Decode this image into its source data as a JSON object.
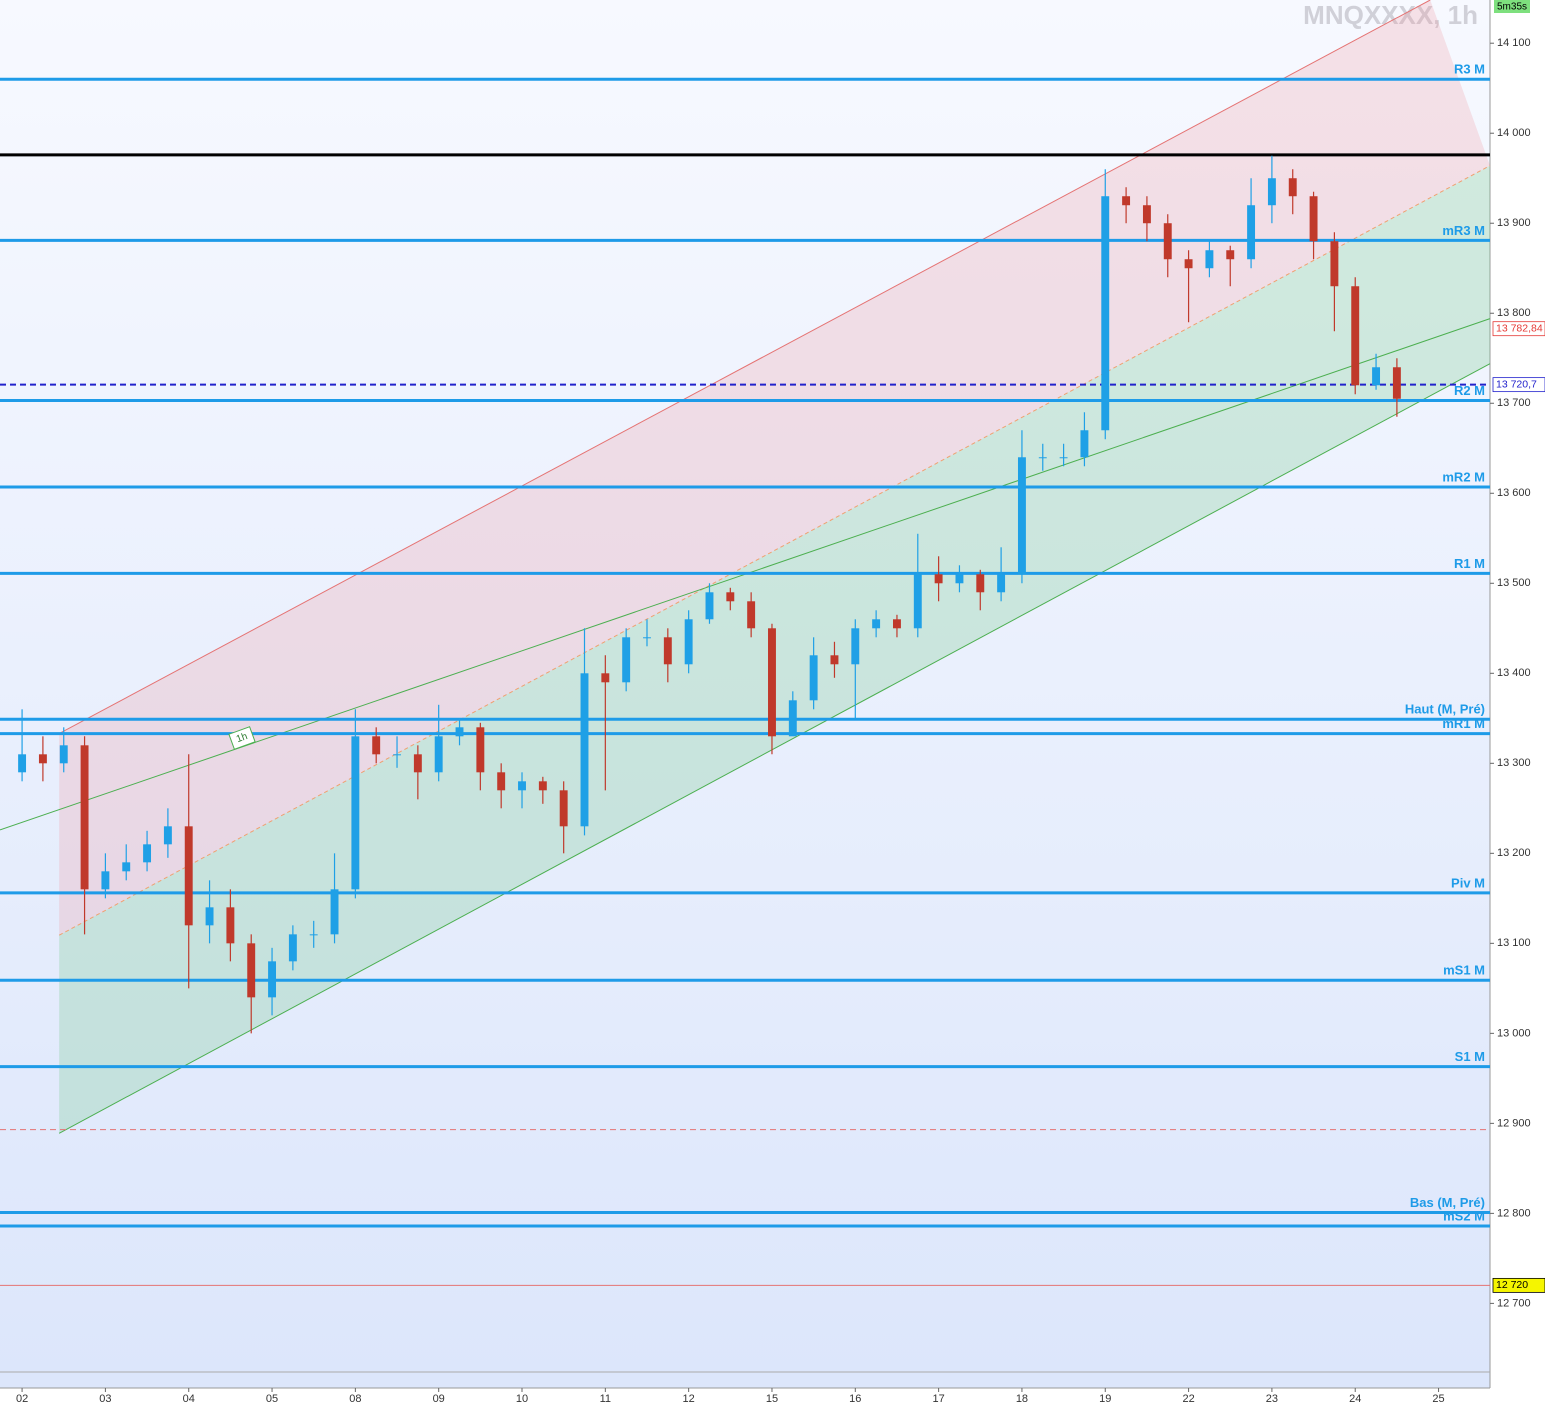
{
  "chart_data": {
    "type": "candlestick",
    "title": "MNQXXXX, 1h",
    "timer": "5m35s",
    "annotation": "1h",
    "xlim": [
      -1.06,
      70.47
    ],
    "ylim": [
      12606,
      14148
    ],
    "xticks": [
      {
        "value": 0,
        "label": "02"
      },
      {
        "value": 4,
        "label": "03"
      },
      {
        "value": 8,
        "label": "04"
      },
      {
        "value": 12,
        "label": "05"
      },
      {
        "value": 16,
        "label": "08"
      },
      {
        "value": 20,
        "label": "09"
      },
      {
        "value": 24,
        "label": "10"
      },
      {
        "value": 28,
        "label": "11"
      },
      {
        "value": 32,
        "label": "12"
      },
      {
        "value": 36,
        "label": "15"
      },
      {
        "value": 40,
        "label": "16"
      },
      {
        "value": 44,
        "label": "17"
      },
      {
        "value": 48,
        "label": "18"
      },
      {
        "value": 52,
        "label": "19"
      },
      {
        "value": 56,
        "label": "22"
      },
      {
        "value": 60,
        "label": "23"
      },
      {
        "value": 64,
        "label": "24"
      },
      {
        "value": 68,
        "label": "25"
      }
    ],
    "yticks": [
      {
        "value": 12700,
        "label": "12 700"
      },
      {
        "value": 12800,
        "label": "12 800"
      },
      {
        "value": 12900,
        "label": "12 900"
      },
      {
        "value": 13000,
        "label": "13 000"
      },
      {
        "value": 13100,
        "label": "13 100"
      },
      {
        "value": 13200,
        "label": "13 200"
      },
      {
        "value": 13300,
        "label": "13 300"
      },
      {
        "value": 13400,
        "label": "13 400"
      },
      {
        "value": 13500,
        "label": "13 500"
      },
      {
        "value": 13600,
        "label": "13 600"
      },
      {
        "value": 13700,
        "label": "13 700"
      },
      {
        "value": 13800,
        "label": "13 800"
      },
      {
        "value": 13900,
        "label": "13 900"
      },
      {
        "value": 14000,
        "label": "14 000"
      },
      {
        "value": 14100,
        "label": "14 100"
      }
    ],
    "up_color": "#1fa0e6",
    "down_color": "#c0392b",
    "open": [
      13290,
      13310,
      13300,
      13320,
      13160,
      13180,
      13190,
      13210,
      13230,
      13120,
      13140,
      13100,
      13040,
      13080,
      13110,
      13110,
      13160,
      13330,
      13310,
      13310,
      13290,
      13330,
      13340,
      13290,
      13270,
      13280,
      13270,
      13230,
      13400,
      13390,
      13440,
      13440,
      13410,
      13460,
      13490,
      13480,
      13450,
      13330,
      13370,
      13420,
      13410,
      13450,
      13460,
      13450,
      13510,
      13500,
      13510,
      13490,
      13510,
      13640,
      13640,
      13640,
      13670,
      13930,
      13920,
      13900,
      13860,
      13850,
      13870,
      13860,
      13920,
      13950,
      13930,
      13880,
      13830,
      13720,
      13740
    ],
    "high": [
      13360,
      13330,
      13340,
      13330,
      13200,
      13210,
      13225,
      13250,
      13310,
      13170,
      13160,
      13110,
      13095,
      13120,
      13125,
      13200,
      13360,
      13340,
      13330,
      13320,
      13365,
      13350,
      13345,
      13300,
      13290,
      13285,
      13280,
      13450,
      13420,
      13450,
      13460,
      13450,
      13470,
      13500,
      13495,
      13490,
      13455,
      13380,
      13440,
      13435,
      13460,
      13470,
      13465,
      13555,
      13530,
      13520,
      13515,
      13540,
      13670,
      13655,
      13655,
      13690,
      13960,
      13940,
      13930,
      13910,
      13870,
      13880,
      13875,
      13950,
      13975,
      13960,
      13935,
      13890,
      13840,
      13755,
      13750
    ],
    "low": [
      13280,
      13280,
      13290,
      13110,
      13150,
      13170,
      13180,
      13195,
      13050,
      13100,
      13080,
      13000,
      13020,
      13070,
      13095,
      13100,
      13150,
      13300,
      13295,
      13260,
      13280,
      13320,
      13270,
      13250,
      13250,
      13255,
      13200,
      13220,
      13270,
      13380,
      13430,
      13390,
      13400,
      13455,
      13470,
      13440,
      13310,
      13345,
      13360,
      13395,
      13350,
      13440,
      13440,
      13440,
      13480,
      13490,
      13470,
      13480,
      13500,
      13625,
      13630,
      13630,
      13660,
      13900,
      13880,
      13840,
      13790,
      13840,
      13830,
      13850,
      13900,
      13910,
      13860,
      13780,
      13710,
      13715,
      13685
    ],
    "close": [
      13310,
      13300,
      13320,
      13160,
      13180,
      13190,
      13210,
      13230,
      13120,
      13140,
      13100,
      13040,
      13080,
      13110,
      13110,
      13160,
      13330,
      13310,
      13310,
      13290,
      13330,
      13340,
      13290,
      13270,
      13280,
      13270,
      13230,
      13400,
      13390,
      13440,
      13440,
      13410,
      13460,
      13490,
      13480,
      13450,
      13330,
      13370,
      13420,
      13410,
      13450,
      13460,
      13450,
      13510,
      13500,
      13510,
      13490,
      13510,
      13640,
      13640,
      13640,
      13670,
      13930,
      13920,
      13900,
      13860,
      13850,
      13870,
      13860,
      13920,
      13950,
      13930,
      13880,
      13830,
      13720,
      13740,
      13705
    ],
    "levels": [
      {
        "name": "R3 M",
        "value": 14060
      },
      {
        "name": "mR3 M",
        "value": 13881
      },
      {
        "name": "R2 M",
        "value": 13703
      },
      {
        "name": "mR2 M",
        "value": 13607
      },
      {
        "name": "R1 M",
        "value": 13511
      },
      {
        "name": "Haut (M, Pré)",
        "value": 13349
      },
      {
        "name": "mR1 M",
        "value": 13333
      },
      {
        "name": "Piv M",
        "value": 13156
      },
      {
        "name": "mS1 M",
        "value": 13059
      },
      {
        "name": "S1 M",
        "value": 12963
      },
      {
        "name": "Bas (M, Pré)",
        "value": 12801
      },
      {
        "name": "mS2 M",
        "value": 12786
      }
    ],
    "level_color": "#1e9be8",
    "resistance": {
      "value": 13976,
      "color": "#000000"
    },
    "lines": [
      {
        "value": 13720.7,
        "color": "#2222cc",
        "dash": true,
        "width": 2
      },
      {
        "value": 12893,
        "color": "#e57373",
        "dash": true,
        "width": 1
      },
      {
        "value": 12720,
        "color": "#e57373",
        "dash": false,
        "width": 1
      }
    ],
    "price_labels": [
      {
        "value": 13782.84,
        "label": "13 782,84",
        "color": "#e53935",
        "bg": "#ffffff"
      },
      {
        "value": 13720.7,
        "label": "13 720,7",
        "color": "#2222cc",
        "bg": "#ffffff"
      },
      {
        "value": 12720,
        "label": "12 720",
        "color": "#000000",
        "bg": "#f5f500"
      }
    ],
    "channels": [
      {
        "color": "#e57373",
        "dash": false,
        "fill": "rgba(240,150,160,0.25)",
        "points": [
          [
            1.78,
            13333
          ],
          [
            67.6,
            14148
          ]
        ]
      },
      {
        "color": "#f0a070",
        "dash": true,
        "fill": "rgba(120,200,140,0.28)",
        "points": [
          [
            1.78,
            13109
          ],
          [
            70.47,
            13964
          ]
        ]
      },
      {
        "color": "#4caf50",
        "dash": false,
        "points": [
          [
            1.78,
            12889
          ],
          [
            70.47,
            13744
          ]
        ]
      },
      {
        "color": "#4caf50",
        "dash": false,
        "points": [
          [
            -1.06,
            13226
          ],
          [
            70.47,
            13794
          ]
        ]
      }
    ]
  }
}
